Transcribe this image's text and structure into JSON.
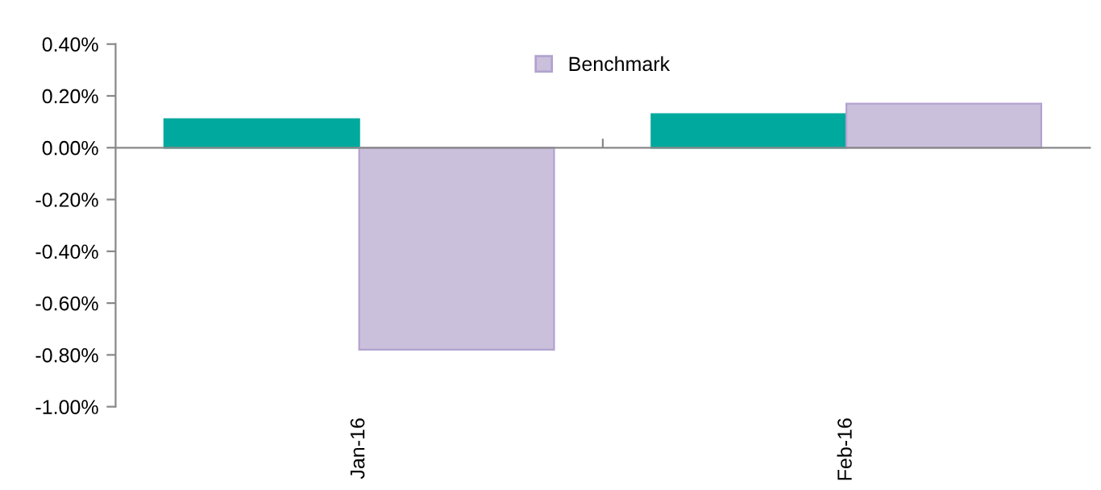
{
  "chart_data": {
    "type": "bar",
    "categories": [
      "Jan-16",
      "Feb-16"
    ],
    "series": [
      {
        "color": "#00a99d",
        "values": [
          0.11,
          0.13
        ]
      },
      {
        "name": "Benchmark",
        "color": "#cbc0dc",
        "values": [
          -0.78,
          0.17
        ]
      }
    ],
    "ylim": [
      -1.0,
      0.4
    ],
    "yticks": [
      {
        "value": -1.0,
        "label": "-1.00%"
      },
      {
        "value": -0.8,
        "label": "-0.80%"
      },
      {
        "value": -0.6,
        "label": "-0.60%"
      },
      {
        "value": -0.4,
        "label": "-0.40%"
      },
      {
        "value": -0.2,
        "label": "-0.20%"
      },
      {
        "value": 0.0,
        "label": "0.00%"
      },
      {
        "value": 0.2,
        "label": "0.20%"
      },
      {
        "value": 0.4,
        "label": "0.40%"
      }
    ],
    "legend": "top"
  }
}
